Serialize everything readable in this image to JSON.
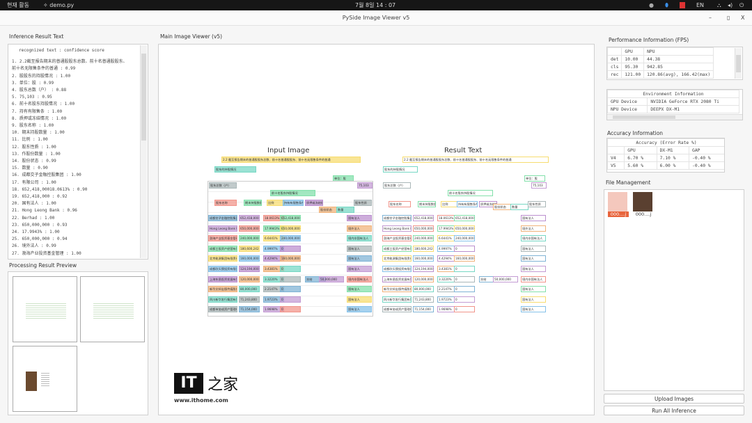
{
  "topbar": {
    "activities": "현재 활동",
    "app": "demo.py",
    "clock": "7월 8일 14 : 07",
    "lang": "EN"
  },
  "window": {
    "title": "PySide Image Viewer v5",
    "minimize": "–",
    "maximize": "▯",
    "close": "X"
  },
  "inference": {
    "label": "Inference Result Text",
    "header": "recognized text : confidence score",
    "lines": [
      "1. 2.2截至报告期末的普通股股东总数、前十名普通股股东、",
      "前十名无限售条件的普通 : 0.99",
      "2. 股股东的持股情况 : 1.00",
      "3. 单位：股 : 0.99",
      "4. 股东总数（户） : 0.88",
      "5. 75,103 : 0.95",
      "6. 前十名股东持股情况 : 1.00",
      "7. 持有有限售条 : 1.00",
      "8. 质押或冻结情况 : 1.00",
      "9. 股东名称 : 1.00",
      "10. 期末持股数量 : 1.00",
      "11. 比例 : 1.00",
      "12. 股东性质 : 1.00",
      "13. 作股份数量 : 1.00",
      "14. 股份状态 : 0.99",
      "15. 数量 : 0.90",
      "16. 成都交子金融控股集团 : 1.00",
      "17. 有限公司 : 1.00",
      "18. 652,418,00018.0613% : 0.90",
      "19. 652,418,000 : 0.92",
      "20. 国有法人 : 1.00",
      "21. Hong Leong Bank : 0.96",
      "22. Berhad : 1.00",
      "23. 650,000,000 : 0.93",
      "24. 17.9943% : 1.00",
      "25. 650,000,000 : 0.94",
      "26. 境外法人 : 0.99",
      "27. 渤海产业投资基金管理 : 1.00"
    ]
  },
  "preview": {
    "label": "Processing Result Preview"
  },
  "viewer": {
    "label": "Main Image Viewer (v5)",
    "input_title": "Input Image",
    "result_title": "Result Text",
    "doc": {
      "heading": "2.2 截至报告期末的普通股股东总数、前十名普通股股东、前十名无限售条件的普通",
      "sub": "股东的持股情况",
      "unit": "单位：股",
      "holders_label": "股东总数（户）",
      "holders_value": "75,103",
      "top10": "前十名股东持股情况",
      "headers": [
        "股东名称",
        "期末持股数量",
        "比例",
        "持有有限售条件股份数量",
        "质押或冻结情况",
        "股份状态",
        "数量",
        "股东性质"
      ],
      "rows": [
        [
          "成都交子金融控股集团有限公司",
          "652,418,000",
          "18.0613%",
          "652,418,000",
          "-",
          "-",
          "国有法人"
        ],
        [
          "Hong Leong Bank Berhad",
          "650,000,000",
          "17.9943%",
          "650,000,000",
          "-",
          "-",
          "境外法人"
        ],
        [
          "渤海产业投资基金管理有限公司",
          "240,000,000",
          "6.6441%",
          "240,000,000",
          "-",
          "-",
          "境内非国有法人"
        ],
        [
          "成都工投资产经营有限公司",
          "180,600,242",
          "4.9997%",
          "0",
          "-",
          "-",
          "国有法人"
        ],
        [
          "北京能源集团有限责任公司",
          "160,000,000",
          "4.4294%",
          "160,000,000",
          "-",
          "-",
          "国有法人"
        ],
        [
          "成都欣天颐投资有限责任公司",
          "124,194,000",
          "3.4381%",
          "0",
          "-",
          "-",
          "国有法人"
        ],
        [
          "上海东昌投资发展有限公司",
          "120,000,000",
          "3.3220%",
          "0",
          "冻结",
          "50,000,000",
          "境内非国有法人"
        ],
        [
          "新华文轩出版传媒股份有限公司",
          "80,000,000",
          "2.2147%",
          "0",
          "-",
          "-",
          "国有法人"
        ],
        [
          "四川新华发行集团有限公司",
          "71,243,800",
          "1.9723%",
          "0",
          "-",
          "-",
          "国有法人"
        ],
        [
          "成都市协成资产管理有限责任公司",
          "71,154,000",
          "1.9698%",
          "0",
          "-",
          "-",
          "国有法人"
        ]
      ]
    },
    "box_colors": [
      "#7fb3d5",
      "#c39bd3",
      "#f1948a",
      "#82e0aa",
      "#f7dc6f",
      "#85c1e9",
      "#bb8fce",
      "#f0b27a",
      "#76d7c4",
      "#aab7b8"
    ]
  },
  "watermark": {
    "url": "www.ithome.com"
  },
  "performance": {
    "label": "Performance Information (FPS)",
    "headers": [
      "",
      "GPU",
      "NPU"
    ],
    "rows": [
      [
        "det",
        "10.00",
        "44.38"
      ],
      [
        "cls",
        "95.30",
        "942.85"
      ],
      [
        "rec",
        "121.00",
        "120.86(avg), 166.42(max)"
      ]
    ]
  },
  "environment": {
    "title": "Environment Information",
    "rows": [
      [
        "GPU Device",
        "NVIDIA GeForce RTX 2080 Ti"
      ],
      [
        "NPU Device",
        "DEEPX DX-M1"
      ]
    ]
  },
  "accuracy": {
    "label": "Accuracy Information",
    "title": "Accuracy (Error Rate %)",
    "headers": [
      "",
      "GPU",
      "DX-M1",
      "GAP"
    ],
    "rows": [
      [
        "V4",
        "6.70 %",
        "7.10 %",
        "-0.40 %"
      ],
      [
        "V5",
        "5.60 %",
        "6.00 %",
        "-0.40 %"
      ]
    ]
  },
  "files": {
    "label": "File Management",
    "items": [
      {
        "name": "000....j",
        "selected": true
      },
      {
        "name": "000....j",
        "selected": false
      }
    ]
  },
  "buttons": {
    "upload": "Upload Images",
    "run_all": "Run All Inference"
  }
}
